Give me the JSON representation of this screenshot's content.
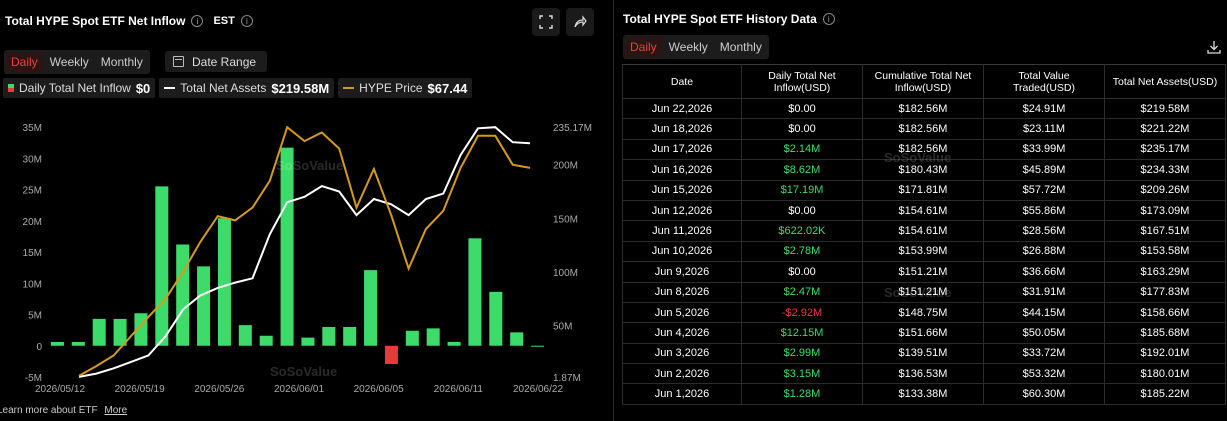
{
  "left": {
    "title": "Total HYPE Spot ETF Net Inflow",
    "timezone": "EST",
    "tabs": [
      "Daily",
      "Weekly",
      "Monthly"
    ],
    "active_tab": "Daily",
    "date_range_label": "Date Range",
    "legend": [
      {
        "label": "Daily Total Net Inflow",
        "value": "$0",
        "color": "#3ddc6a"
      },
      {
        "label": "Total Net Assets",
        "value": "$219.58M",
        "color": "#ffffff"
      },
      {
        "label": "HYPE Price",
        "value": "$67.44",
        "color": "#d49a1e"
      }
    ],
    "watermark": "SoSoValue",
    "footer_text": "Learn more about ETF",
    "footer_link": "More"
  },
  "chart_data": {
    "type": "bar",
    "title": "Total HYPE Spot ETF Net Inflow",
    "x_tick_labels": [
      "2026/05/12",
      "2026/05/19",
      "2026/05/26",
      "2026/06/01",
      "2026/06/05",
      "2026/06/11",
      "2026/06/22"
    ],
    "left_axis": {
      "ticks": [
        "35M",
        "30M",
        "25M",
        "20M",
        "15M",
        "10M",
        "5M",
        "0",
        "-5M"
      ],
      "range": [
        -5,
        35
      ],
      "unit": "M USD"
    },
    "right_axis": {
      "ticks": [
        "235.17M",
        "200M",
        "150M",
        "100M",
        "50M",
        "1.87M"
      ],
      "range": [
        1.87,
        235.17
      ],
      "unit": "M USD"
    },
    "series": [
      {
        "name": "Daily Total Net Inflow",
        "kind": "bar",
        "color_pos": "#3ddc6a",
        "color_neg": "#e83a3a",
        "values": [
          0.6,
          0.6,
          4.3,
          4.3,
          5.2,
          25.5,
          16.2,
          12.7,
          20.4,
          3.3,
          1.6,
          31.7,
          1.3,
          3.0,
          3.0,
          12.1,
          -2.92,
          2.4,
          2.78,
          0.62,
          17.19,
          8.62,
          2.14,
          0
        ]
      },
      {
        "name": "Total Net Assets",
        "kind": "line",
        "color": "#ffffff",
        "values": [
          2,
          5,
          10,
          16,
          22,
          40,
          65,
          78,
          85,
          90,
          94,
          135,
          165,
          170,
          180,
          175,
          153,
          168,
          163,
          153,
          168,
          173,
          209,
          234,
          235,
          221,
          220
        ]
      },
      {
        "name": "HYPE Price",
        "kind": "line",
        "color": "#d49a1e",
        "values": [
          3,
          12,
          22,
          40,
          58,
          75,
          100,
          128,
          152,
          148,
          160,
          185,
          235,
          222,
          230,
          215,
          160,
          196,
          153,
          103,
          140,
          157,
          197,
          227,
          227,
          200,
          197
        ]
      }
    ]
  },
  "right": {
    "title": "Total HYPE Spot ETF History Data",
    "tabs": [
      "Daily",
      "Weekly",
      "Monthly"
    ],
    "active_tab": "Daily",
    "columns": [
      "Date",
      "Daily Total Net Inflow(USD)",
      "Cumulative Total Net Inflow(USD)",
      "Total Value Traded(USD)",
      "Total Net Assets(USD)"
    ],
    "rows": [
      [
        "Jun 22,2026",
        "$0.00",
        "$182.56M",
        "$24.91M",
        "$219.58M"
      ],
      [
        "Jun 18,2026",
        "$0.00",
        "$182.56M",
        "$23.11M",
        "$221.22M"
      ],
      [
        "Jun 17,2026",
        "$2.14M",
        "$182.56M",
        "$33.99M",
        "$235.17M"
      ],
      [
        "Jun 16,2026",
        "$8.62M",
        "$180.43M",
        "$45.89M",
        "$234.33M"
      ],
      [
        "Jun 15,2026",
        "$17.19M",
        "$171.81M",
        "$57.72M",
        "$209.26M"
      ],
      [
        "Jun 12,2026",
        "$0.00",
        "$154.61M",
        "$55.86M",
        "$173.09M"
      ],
      [
        "Jun 11,2026",
        "$622.02K",
        "$154.61M",
        "$28.56M",
        "$167.51M"
      ],
      [
        "Jun 10,2026",
        "$2.78M",
        "$153.99M",
        "$26.88M",
        "$153.58M"
      ],
      [
        "Jun 9,2026",
        "$0.00",
        "$151.21M",
        "$36.66M",
        "$163.29M"
      ],
      [
        "Jun 8,2026",
        "$2.47M",
        "$151.21M",
        "$31.91M",
        "$177.83M"
      ],
      [
        "Jun 5,2026",
        "-$2.92M",
        "$148.75M",
        "$44.15M",
        "$158.66M"
      ],
      [
        "Jun 4,2026",
        "$12.15M",
        "$151.66M",
        "$50.05M",
        "$185.68M"
      ],
      [
        "Jun 3,2026",
        "$2.99M",
        "$139.51M",
        "$33.72M",
        "$192.01M"
      ],
      [
        "Jun 2,2026",
        "$3.15M",
        "$136.53M",
        "$53.32M",
        "$180.01M"
      ],
      [
        "Jun 1,2026",
        "$1.28M",
        "$133.38M",
        "$60.30M",
        "$185.22M"
      ]
    ],
    "watermark": "SoSoValue"
  }
}
